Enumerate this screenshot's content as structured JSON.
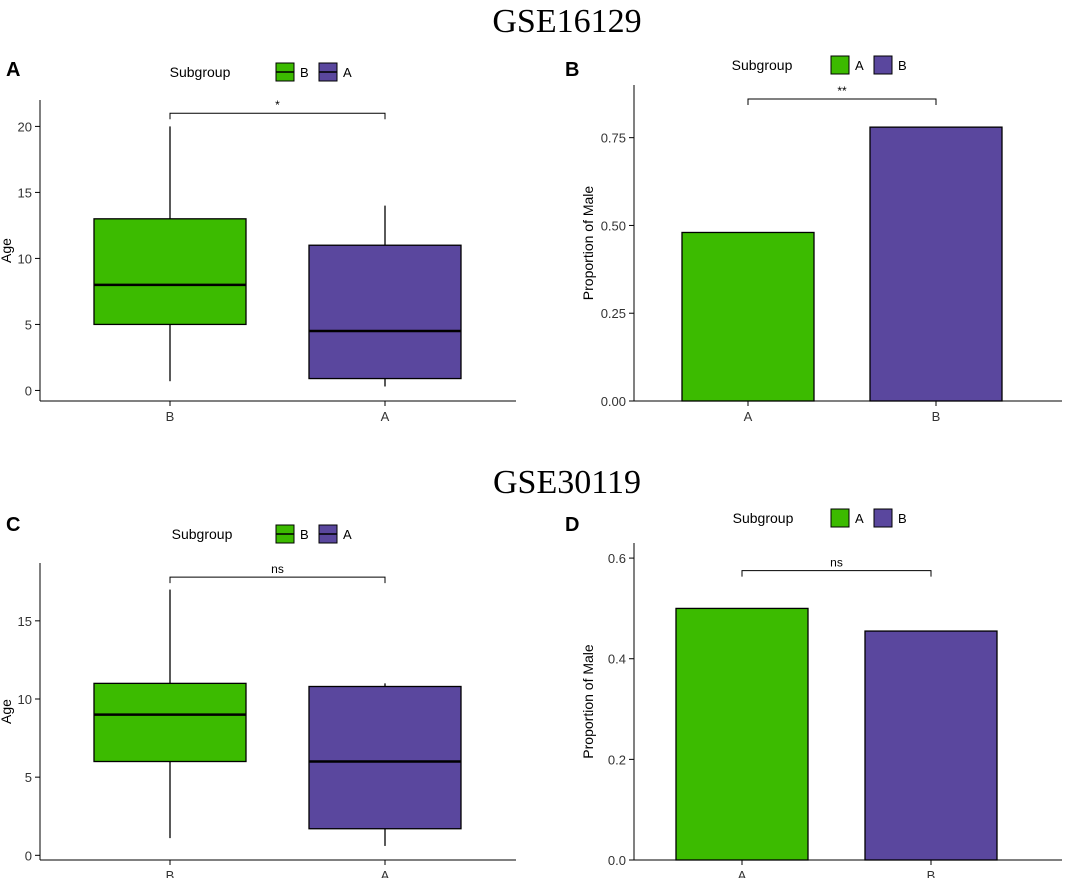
{
  "figure_titles": [
    "GSE16129",
    "GSE30119"
  ],
  "colors": {
    "green": "#3cbb00",
    "purple": "#5a479e"
  },
  "chart_data": [
    {
      "panel": "A",
      "type": "boxplot",
      "dataset": "GSE16129",
      "legend_title": "Subgroup",
      "legend": [
        "B",
        "A"
      ],
      "legend_colors": [
        "#3cbb00",
        "#5a479e"
      ],
      "categories": [
        "B",
        "A"
      ],
      "boxes": [
        {
          "name": "B",
          "color": "#3cbb00",
          "whisker_low": 0.7,
          "q1": 5,
          "median": 8,
          "q3": 13,
          "whisker_high": 20
        },
        {
          "name": "A",
          "color": "#5a479e",
          "whisker_low": 0.3,
          "q1": 0.9,
          "median": 4.5,
          "q3": 11,
          "whisker_high": 14
        }
      ],
      "ylabel": "Age",
      "xlabel": "",
      "ylim": [
        -0.8,
        22
      ],
      "yticks": [
        0,
        5,
        10,
        15,
        20
      ],
      "ytick_labels": [
        "0",
        "5",
        "10",
        "15",
        "20"
      ],
      "annotation": {
        "label": "*",
        "y": 21
      }
    },
    {
      "panel": "B",
      "type": "bar",
      "dataset": "GSE16129",
      "legend_title": "Subgroup",
      "legend": [
        "A",
        "B"
      ],
      "legend_colors": [
        "#3cbb00",
        "#5a479e"
      ],
      "categories": [
        "A",
        "B"
      ],
      "values": [
        0.48,
        0.78
      ],
      "bar_colors": [
        "#3cbb00",
        "#5a479e"
      ],
      "ylabel": "Proportion of Male",
      "xlabel": "",
      "ylim": [
        0,
        0.9
      ],
      "yticks": [
        0,
        0.25,
        0.5,
        0.75
      ],
      "ytick_labels": [
        "0.00",
        "0.25",
        "0.50",
        "0.75"
      ],
      "annotation": {
        "label": "**",
        "y": 0.86
      }
    },
    {
      "panel": "C",
      "type": "boxplot",
      "dataset": "GSE30119",
      "legend_title": "Subgroup",
      "legend": [
        "B",
        "A"
      ],
      "legend_colors": [
        "#3cbb00",
        "#5a479e"
      ],
      "categories": [
        "B",
        "A"
      ],
      "boxes": [
        {
          "name": "B",
          "color": "#3cbb00",
          "whisker_low": 1.1,
          "q1": 6,
          "median": 9,
          "q3": 11,
          "whisker_high": 17
        },
        {
          "name": "A",
          "color": "#5a479e",
          "whisker_low": 0.6,
          "q1": 1.7,
          "median": 6,
          "q3": 10.8,
          "whisker_high": 11
        }
      ],
      "ylabel": "Age",
      "xlabel": "",
      "ylim": [
        -0.3,
        18.7
      ],
      "yticks": [
        0,
        5,
        10,
        15
      ],
      "ytick_labels": [
        "0",
        "5",
        "10",
        "15"
      ],
      "annotation": {
        "label": "ns",
        "y": 17.8
      }
    },
    {
      "panel": "D",
      "type": "bar",
      "dataset": "GSE30119",
      "legend_title": "Subgroup",
      "legend": [
        "A",
        "B"
      ],
      "legend_colors": [
        "#3cbb00",
        "#5a479e"
      ],
      "categories": [
        "A",
        "B"
      ],
      "values": [
        0.5,
        0.455
      ],
      "bar_colors": [
        "#3cbb00",
        "#5a479e"
      ],
      "ylabel": "Proportion of Male",
      "xlabel": "",
      "ylim": [
        0,
        0.63
      ],
      "yticks": [
        0,
        0.2,
        0.4,
        0.6
      ],
      "ytick_labels": [
        "0.0",
        "0.2",
        "0.4",
        "0.6"
      ],
      "annotation": {
        "label": "ns",
        "y": 0.575
      }
    }
  ]
}
